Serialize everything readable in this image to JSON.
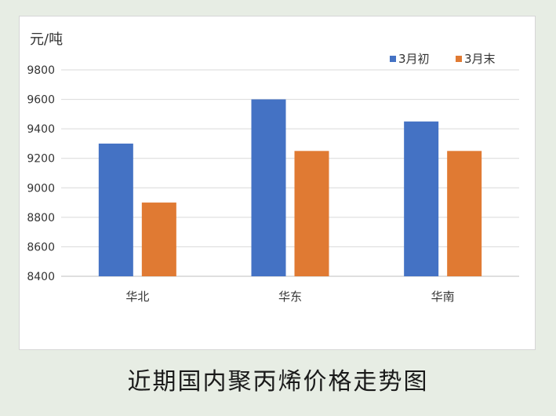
{
  "caption": "近期国内聚丙烯价格走势图",
  "chart_data": {
    "type": "bar",
    "title": "",
    "ylabel": "元/吨",
    "xlabel": "",
    "categories": [
      "华北",
      "华东",
      "华南"
    ],
    "series": [
      {
        "name": "3月初",
        "color": "#4472c4",
        "values": [
          9300,
          9600,
          9450
        ]
      },
      {
        "name": "3月末",
        "color": "#e07a33",
        "values": [
          8900,
          9250,
          9250
        ]
      }
    ],
    "ylim": [
      8400,
      9800
    ],
    "yticks": [
      8400,
      8600,
      8800,
      9000,
      9200,
      9400,
      9600,
      9800
    ],
    "grid": true,
    "legend": "top-right"
  }
}
